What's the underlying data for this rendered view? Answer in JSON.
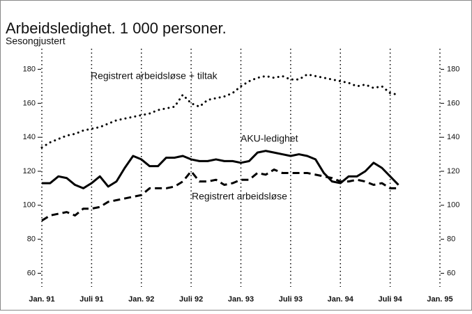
{
  "chart_data": {
    "type": "line",
    "title": "Arbeidsledighet. 1 000 personer.",
    "subtitle": "Sesongjustert",
    "x": [
      0,
      1,
      2,
      3,
      4,
      5,
      6,
      7,
      8,
      9,
      10,
      11,
      12,
      13,
      14,
      15,
      16,
      17,
      18,
      19,
      20,
      21,
      22,
      23,
      24,
      25,
      26,
      27,
      28,
      29,
      30,
      31,
      32,
      33,
      34,
      35,
      36,
      37,
      38,
      39,
      40,
      41,
      42,
      43
    ],
    "series": [
      {
        "name": "Registrert arbeidsløse + tiltak",
        "color": "#000000",
        "style": "dotted",
        "values": [
          134,
          137,
          139,
          141,
          142,
          144,
          145,
          146,
          148,
          150,
          151,
          152,
          153,
          154,
          156,
          157,
          158,
          165,
          160,
          158,
          162,
          163,
          164,
          166,
          170,
          173,
          175,
          176,
          175,
          176,
          174,
          174,
          177,
          176,
          175,
          174,
          173,
          172,
          170,
          171,
          169,
          170,
          166,
          165
        ]
      },
      {
        "name": "AKU-ledighet",
        "color": "#000000",
        "style": "solid",
        "values": [
          113,
          113,
          117,
          116,
          112,
          110,
          113,
          117,
          111,
          114,
          122,
          129,
          127,
          123,
          123,
          128,
          128,
          129,
          127,
          126,
          126,
          127,
          126,
          126,
          125,
          126,
          131,
          132,
          131,
          130,
          129,
          130,
          129,
          127,
          119,
          114,
          113,
          117,
          117,
          120,
          125,
          122,
          117,
          112
        ]
      },
      {
        "name": "Registrert arbeidsløse",
        "color": "#000000",
        "style": "dashed",
        "values": [
          91,
          94,
          95,
          96,
          94,
          98,
          98,
          99,
          102,
          103,
          104,
          105,
          106,
          110,
          110,
          110,
          111,
          114,
          120,
          114,
          114,
          115,
          112,
          113,
          115,
          115,
          119,
          118,
          121,
          119,
          119,
          119,
          119,
          118,
          117,
          116,
          114,
          114,
          115,
          114,
          112,
          113,
          110,
          110
        ]
      }
    ],
    "xlim": [
      0,
      48
    ],
    "xticks": [
      {
        "value": 0,
        "label": "Jan. 91"
      },
      {
        "value": 6,
        "label": "Juli 91"
      },
      {
        "value": 12,
        "label": "Jan. 92"
      },
      {
        "value": 18,
        "label": "Juli 92"
      },
      {
        "value": 24,
        "label": "Jan. 93"
      },
      {
        "value": 30,
        "label": "Juli 93"
      },
      {
        "value": 36,
        "label": "Jan. 94"
      },
      {
        "value": 42,
        "label": "Juli 94"
      },
      {
        "value": 48,
        "label": "Jan. 95"
      }
    ],
    "ylim": [
      52,
      188
    ],
    "yticks": [
      60,
      80,
      100,
      120,
      140,
      160,
      180
    ],
    "grid": true
  }
}
